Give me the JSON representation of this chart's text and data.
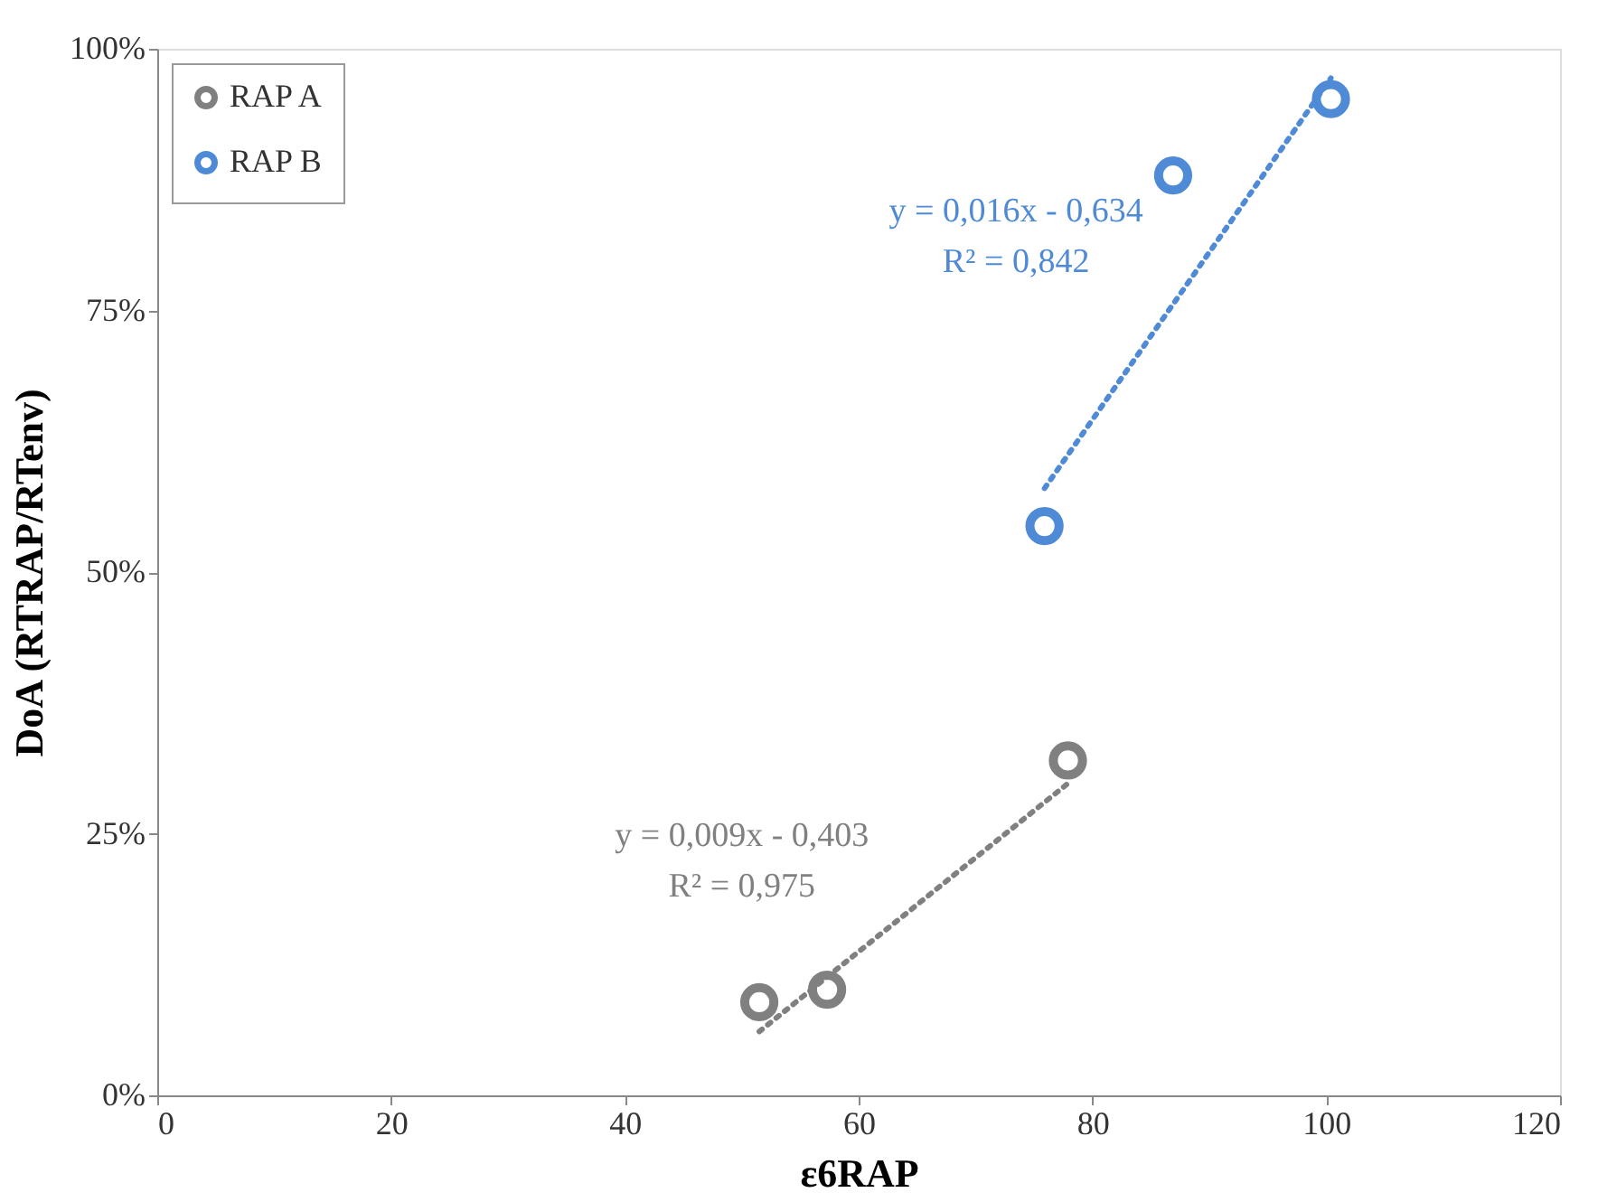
{
  "chart_data": {
    "type": "scatter",
    "xlabel": "ε6RAP",
    "ylabel": "DoA (RTRAP/RTenv)",
    "xlim": [
      0,
      120
    ],
    "xticks": [
      0,
      20,
      40,
      60,
      80,
      100,
      120
    ],
    "ylim": [
      0,
      100
    ],
    "yticks": [
      {
        "value": 0,
        "label": "0%"
      },
      {
        "value": 25,
        "label": "25%"
      },
      {
        "value": 50,
        "label": "50%"
      },
      {
        "value": 75,
        "label": "75%"
      },
      {
        "value": 100,
        "label": "100%"
      }
    ],
    "grid": false,
    "legend": "top left",
    "marker": "circle",
    "series": [
      {
        "name": "RAP A",
        "color": "#808080",
        "x": [
          51.5,
          57.3,
          77.9
        ],
        "values": [
          8.9,
          10.1,
          32.0
        ]
      },
      {
        "name": "RAP B",
        "color": "#4e8ad6",
        "x": [
          75.9,
          86.9,
          100.4
        ],
        "values": [
          54.4,
          87.9,
          95.2
        ]
      },
      {
        "type": "line",
        "marker": "none",
        "color": "#808080",
        "line_style": "dotted",
        "x": [
          51.5,
          77.9
        ],
        "values": [
          6.1,
          29.8
        ]
      },
      {
        "type": "line",
        "marker": "none",
        "color": "#4e8ad6",
        "line_style": "dotted",
        "x": [
          75.9,
          100.4
        ],
        "values": [
          58.0,
          97.2
        ]
      }
    ],
    "annotations": [
      "y = 0,009x - 0,403",
      "R² = 0,975",
      "y = 0,016x - 0,634",
      "R² = 0,842"
    ]
  }
}
